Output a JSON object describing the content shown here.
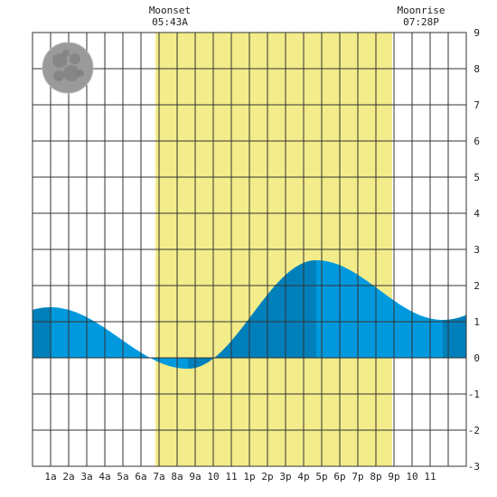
{
  "moonset": {
    "label": "Moonset",
    "time": "05:43A"
  },
  "moonrise": {
    "label": "Moonrise",
    "time": "07:28P"
  },
  "moon_phase_icon": "full-moon-icon",
  "colors": {
    "daylight": "#f3ec8a",
    "tide_light": "#0099dd",
    "tide_dark": "#0080bb",
    "grid": "#333333",
    "moon": "#9a9a9a"
  },
  "chart_data": {
    "type": "area",
    "x_unit": "hour",
    "xlim": [
      -1,
      23
    ],
    "ylim": [
      -3,
      9
    ],
    "y_ticks": [
      "-3",
      "-2",
      "-1",
      "0",
      "1",
      "2",
      "3",
      "4",
      "5",
      "6",
      "7",
      "8",
      "9"
    ],
    "x_tick_labels": [
      "1a",
      "2a",
      "3a",
      "4a",
      "5a",
      "6a",
      "7a",
      "8a",
      "9a",
      "10",
      "11",
      "1p",
      "2p",
      "3p",
      "4p",
      "5p",
      "6p",
      "7p",
      "8p",
      "9p",
      "10",
      "11"
    ],
    "grid": true,
    "daylight_hours": [
      5.8,
      18.9
    ],
    "tide_extremes": [
      {
        "hour": 0.0,
        "height": 1.4
      },
      {
        "hour": 7.6,
        "height": -0.3
      },
      {
        "hour": 14.7,
        "height": 2.7
      },
      {
        "hour": 21.7,
        "height": 1.05
      }
    ],
    "series": [
      {
        "values": [
          [
            -1,
            1.38
          ],
          [
            0,
            1.4
          ],
          [
            1,
            1.29
          ],
          [
            2,
            0.99
          ],
          [
            3,
            0.6
          ],
          [
            4,
            0.22
          ],
          [
            5,
            -0.07
          ],
          [
            6,
            -0.25
          ],
          [
            7,
            -0.29
          ],
          [
            8,
            -0.27
          ],
          [
            9,
            0.07
          ],
          [
            10,
            0.68
          ],
          [
            11,
            1.41
          ],
          [
            12,
            2.07
          ],
          [
            13,
            2.52
          ],
          [
            14,
            2.69
          ],
          [
            15,
            2.65
          ],
          [
            16,
            2.4
          ],
          [
            17,
            2.04
          ],
          [
            18,
            1.66
          ],
          [
            19,
            1.34
          ],
          [
            20,
            1.13
          ],
          [
            21,
            1.05
          ],
          [
            22,
            1.08
          ],
          [
            23,
            1.25
          ]
        ]
      }
    ]
  }
}
